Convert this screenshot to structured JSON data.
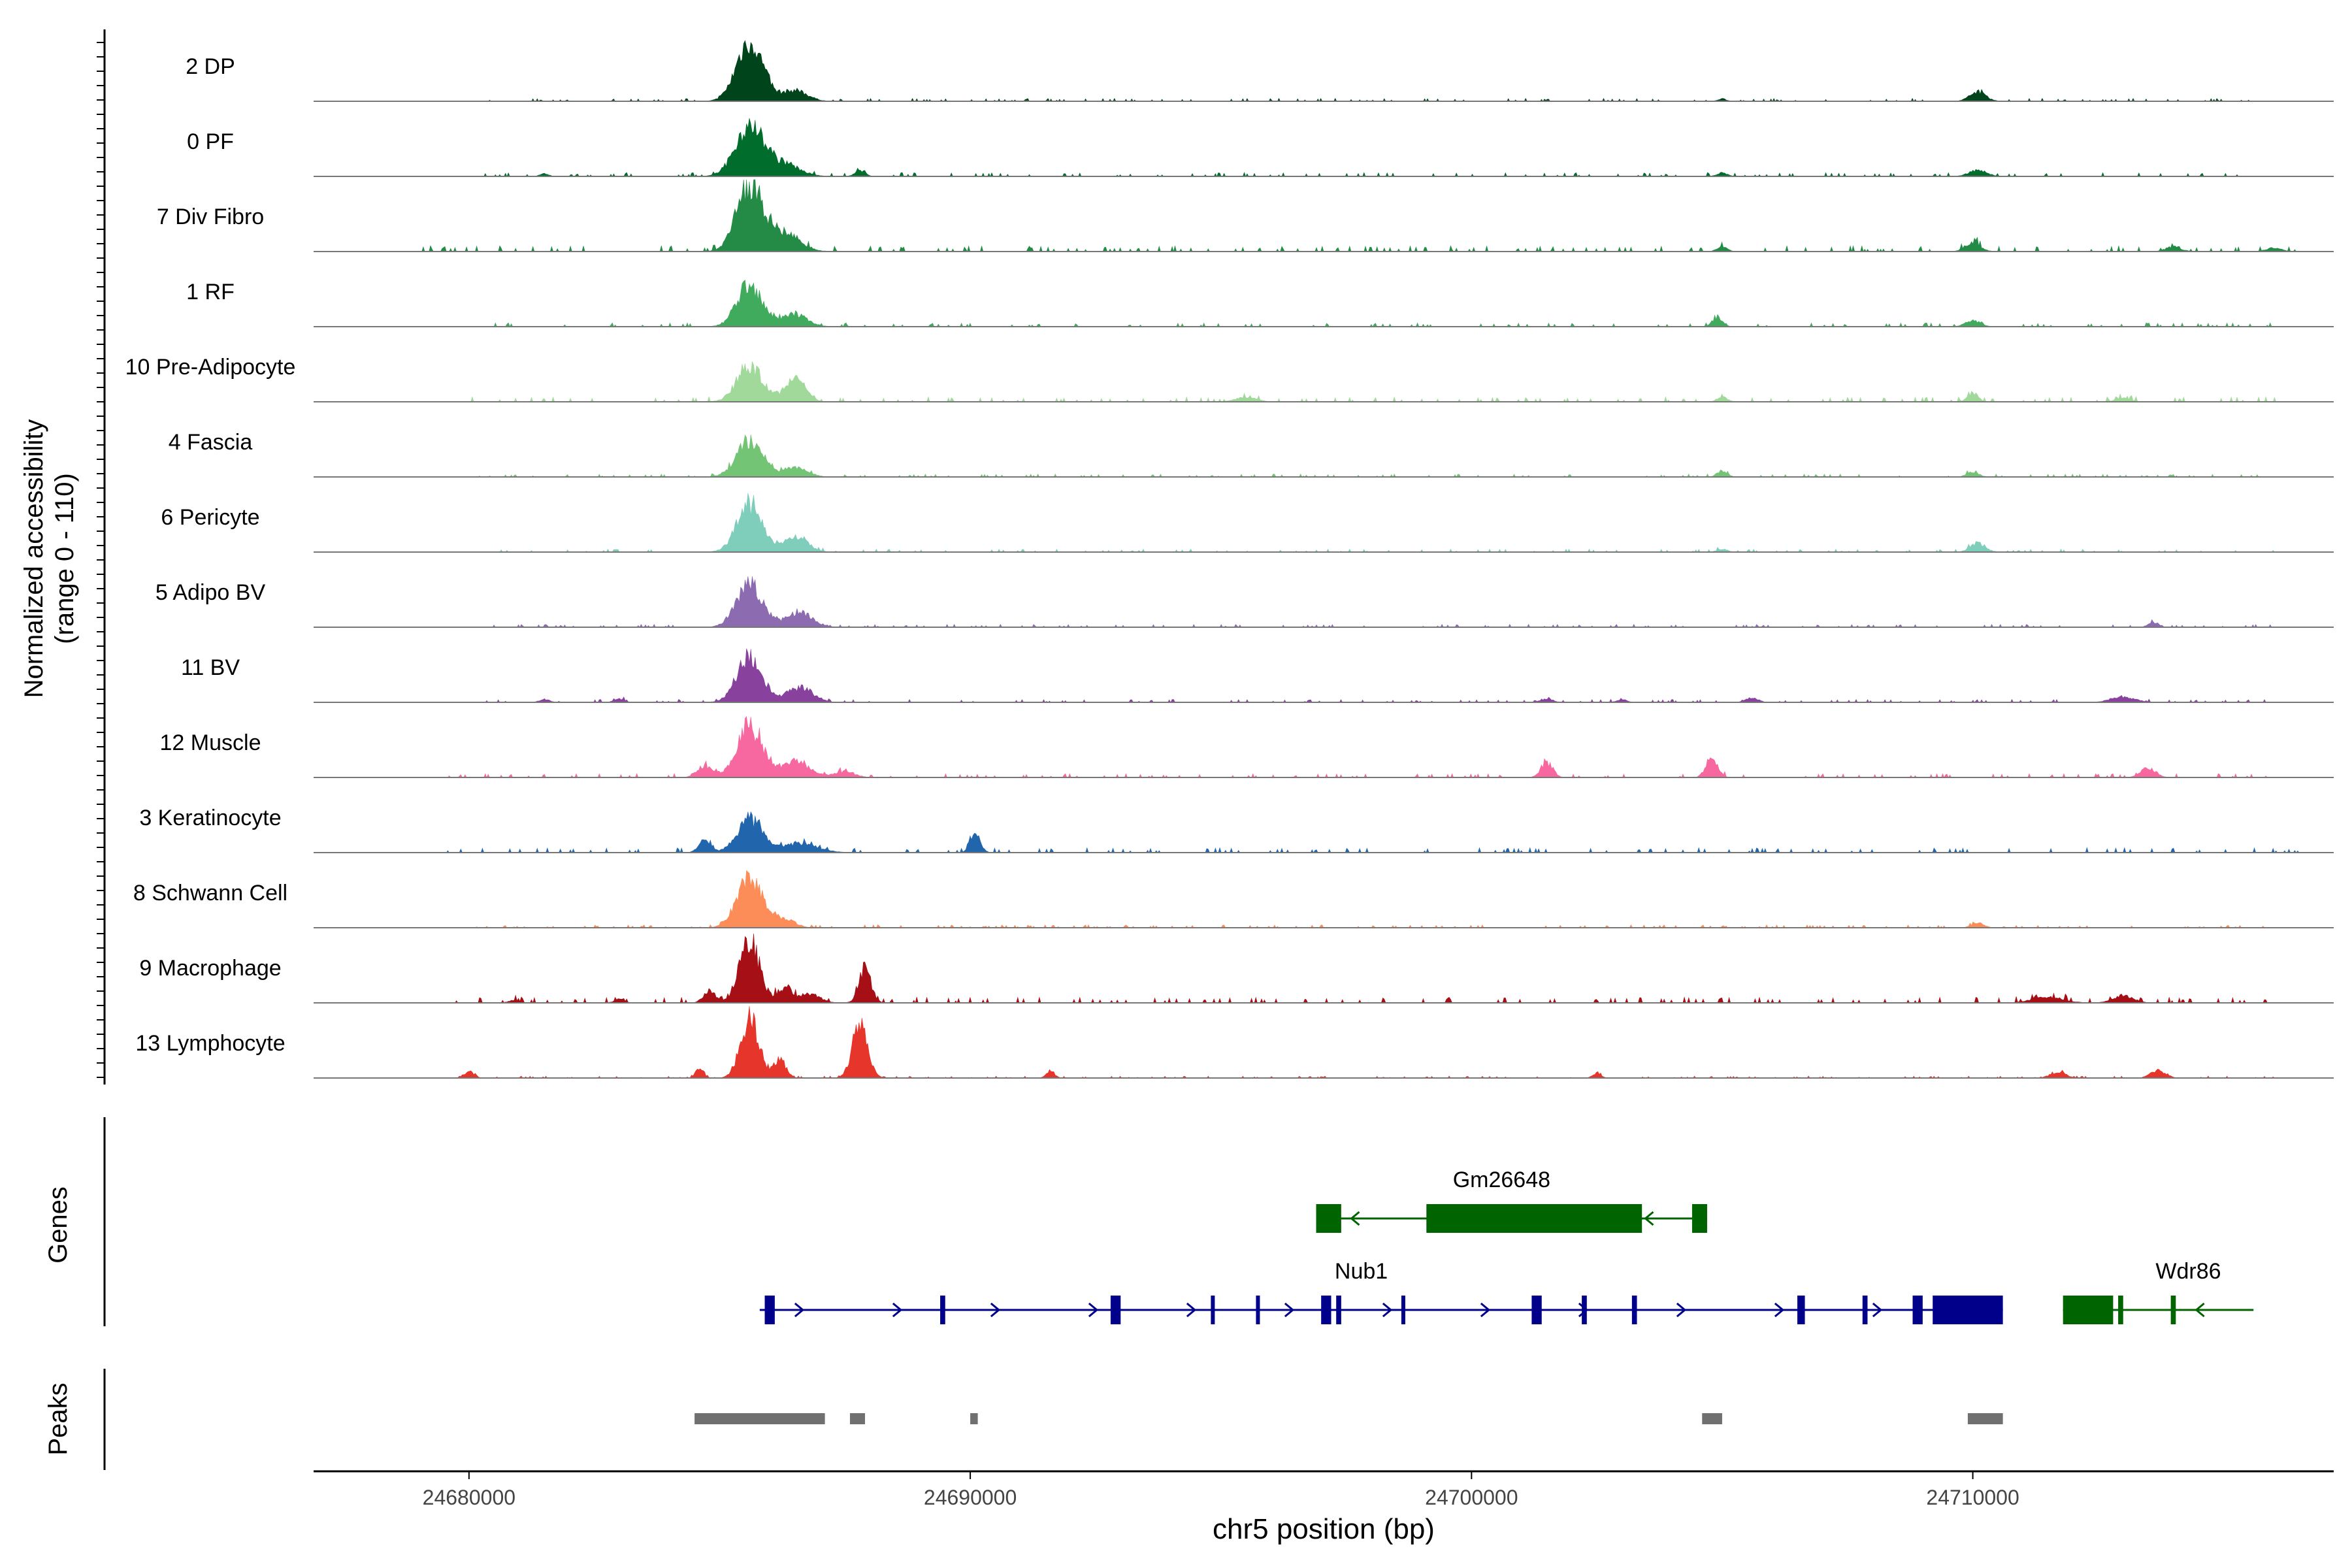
{
  "chart_data": {
    "type": "area",
    "title": "",
    "ylabel_line1": "Normalized accessibility",
    "ylabel_line2": "(range 0 - 110)",
    "y_range": [
      0,
      110
    ],
    "xlabel": "chr5 position (bp)",
    "xlim": [
      24676900,
      24717200
    ],
    "x_ticks": [
      24680000,
      24690000,
      24700000,
      24710000
    ],
    "x_tick_labels": [
      "24680000",
      "24690000",
      "24700000",
      "24710000"
    ],
    "tracks": [
      {
        "name": "2 DP",
        "color": "#00441b",
        "peaks": [
          [
            24685600,
            100,
            260
          ],
          [
            24686500,
            18,
            250
          ],
          [
            24710100,
            15,
            160
          ],
          [
            24705000,
            4,
            80
          ]
        ],
        "noise": [
          24680000,
          24716000
        ],
        "level": 3
      },
      {
        "name": "0 PF",
        "color": "#006d2c",
        "peaks": [
          [
            24685600,
            85,
            280
          ],
          [
            24686300,
            20,
            300
          ],
          [
            24687800,
            10,
            100
          ],
          [
            24710100,
            10,
            180
          ],
          [
            24705000,
            6,
            100
          ],
          [
            24681500,
            5,
            80
          ]
        ],
        "noise": [
          24680000,
          24716000
        ],
        "level": 4
      },
      {
        "name": "7 Div Fibro",
        "color": "#238b45",
        "peaks": [
          [
            24685600,
            110,
            260
          ],
          [
            24686300,
            30,
            300
          ],
          [
            24710000,
            15,
            150
          ],
          [
            24705000,
            8,
            100
          ],
          [
            24714000,
            8,
            150
          ],
          [
            24716000,
            6,
            150
          ]
        ],
        "noise": [
          24679000,
          24716500
        ],
        "level": 6
      },
      {
        "name": "1 RF",
        "color": "#41ab5d",
        "peaks": [
          [
            24685600,
            70,
            250
          ],
          [
            24686500,
            20,
            250
          ],
          [
            24704900,
            15,
            100
          ],
          [
            24710000,
            10,
            150
          ]
        ],
        "noise": [
          24680000,
          24716000
        ],
        "level": 4
      },
      {
        "name": "10 Pre-Adipocyte",
        "color": "#a1d99b",
        "peaks": [
          [
            24685600,
            60,
            250
          ],
          [
            24686500,
            40,
            200
          ],
          [
            24710000,
            15,
            100
          ],
          [
            24695500,
            8,
            200
          ],
          [
            24713000,
            6,
            150
          ],
          [
            24705000,
            8,
            100
          ]
        ],
        "noise": [
          24680000,
          24716500
        ],
        "level": 5
      },
      {
        "name": "4 Fascia",
        "color": "#74c476",
        "peaks": [
          [
            24685600,
            60,
            260
          ],
          [
            24686500,
            15,
            250
          ],
          [
            24705000,
            10,
            100
          ],
          [
            24710000,
            8,
            120
          ]
        ],
        "noise": [
          24680000,
          24716000
        ],
        "level": 3
      },
      {
        "name": "6 Pericyte",
        "color": "#7fcdbb",
        "peaks": [
          [
            24685600,
            80,
            250
          ],
          [
            24686500,
            25,
            250
          ],
          [
            24710100,
            15,
            150
          ],
          [
            24705000,
            5,
            100
          ]
        ],
        "noise": [
          24680000,
          24716000
        ],
        "level": 3
      },
      {
        "name": "5 Adipo BV",
        "color": "#8c6bb1",
        "peaks": [
          [
            24685600,
            70,
            260
          ],
          [
            24686600,
            25,
            250
          ],
          [
            24713600,
            8,
            100
          ]
        ],
        "noise": [
          24680000,
          24716000
        ],
        "level": 3
      },
      {
        "name": "11 BV",
        "color": "#88419d",
        "peaks": [
          [
            24685600,
            75,
            250
          ],
          [
            24686600,
            25,
            250
          ],
          [
            24705600,
            8,
            120
          ],
          [
            24701500,
            6,
            120
          ],
          [
            24713000,
            8,
            250
          ],
          [
            24683000,
            6,
            100
          ],
          [
            24681500,
            5,
            100
          ],
          [
            24703000,
            5,
            100
          ]
        ],
        "noise": [
          24680000,
          24716000
        ],
        "level": 3
      },
      {
        "name": "12 Muscle",
        "color": "#f768a1",
        "peaks": [
          [
            24685600,
            85,
            250
          ],
          [
            24686500,
            25,
            300
          ],
          [
            24704800,
            30,
            120
          ],
          [
            24701500,
            25,
            120
          ],
          [
            24684700,
            20,
            150
          ],
          [
            24713500,
            15,
            150
          ],
          [
            24687500,
            10,
            200
          ]
        ],
        "noise": [
          24679500,
          24716000
        ],
        "level": 4
      },
      {
        "name": "3 Keratinocyte",
        "color": "#2166ac",
        "peaks": [
          [
            24685600,
            55,
            250
          ],
          [
            24684700,
            20,
            120
          ],
          [
            24690100,
            30,
            100
          ],
          [
            24686600,
            15,
            350
          ]
        ],
        "noise": [
          24679500,
          24716500
        ],
        "level": 5
      },
      {
        "name": "8 Schwann Cell",
        "color": "#fc8d59",
        "peaks": [
          [
            24685600,
            80,
            250
          ],
          [
            24686300,
            15,
            200
          ],
          [
            24710100,
            8,
            120
          ]
        ],
        "noise": [
          24680000,
          24716000
        ],
        "level": 3
      },
      {
        "name": "9 Macrophage",
        "color": "#a50f15",
        "peaks": [
          [
            24685600,
            100,
            200
          ],
          [
            24684800,
            20,
            120
          ],
          [
            24686300,
            25,
            150
          ],
          [
            24687900,
            55,
            120
          ],
          [
            24686800,
            15,
            200
          ],
          [
            24711500,
            10,
            300
          ],
          [
            24713000,
            12,
            200
          ],
          [
            24680900,
            5,
            100
          ],
          [
            24683000,
            6,
            100
          ]
        ],
        "noise": [
          24679500,
          24716000
        ],
        "level": 6
      },
      {
        "name": "13 Lymphocyte",
        "color": "#e6352b",
        "peaks": [
          [
            24685600,
            100,
            180
          ],
          [
            24687800,
            90,
            150
          ],
          [
            24686200,
            30,
            120
          ],
          [
            24684600,
            15,
            80
          ],
          [
            24680000,
            10,
            100
          ],
          [
            24691600,
            12,
            80
          ],
          [
            24711700,
            10,
            150
          ],
          [
            24713700,
            12,
            150
          ],
          [
            24702500,
            8,
            80
          ]
        ],
        "noise": [
          24679500,
          24716000
        ],
        "level": 2
      }
    ],
    "genes_label": "Genes",
    "genes": [
      {
        "name": "Gm26648",
        "color": "#006400",
        "strand": "-",
        "start": 24696900,
        "end": 24704700,
        "exons": [
          [
            24696900,
            24697400
          ],
          [
            24699100,
            24703400
          ],
          [
            24704400,
            24704700
          ]
        ]
      },
      {
        "name": "Nub1",
        "color": "#00008b",
        "strand": "+",
        "start": 24685800,
        "end": 24710600,
        "exons": [
          [
            24685900,
            24686100
          ],
          [
            24689400,
            24689500
          ],
          [
            24692800,
            24693000
          ],
          [
            24694800,
            24694850
          ],
          [
            24695700,
            24695750
          ],
          [
            24697000,
            24697200
          ],
          [
            24697300,
            24697400
          ],
          [
            24698600,
            24698650
          ],
          [
            24701200,
            24701400
          ],
          [
            24702200,
            24702300
          ],
          [
            24703200,
            24703300
          ],
          [
            24706500,
            24706650
          ],
          [
            24707800,
            24707900
          ],
          [
            24708800,
            24709000
          ],
          [
            24709200,
            24710600
          ]
        ]
      },
      {
        "name": "Wdr86",
        "color": "#006400",
        "strand": "-",
        "start": 24711800,
        "end": 24715600,
        "exons": [
          [
            24711800,
            24712800
          ],
          [
            24712900,
            24713000
          ],
          [
            24713950,
            24714050
          ]
        ]
      }
    ],
    "peaks_label": "Peaks",
    "peak_regions": [
      [
        24684500,
        24687100
      ],
      [
        24687600,
        24687900
      ],
      [
        24690000,
        24690150
      ],
      [
        24704600,
        24705000
      ],
      [
        24709900,
        24710600
      ]
    ]
  }
}
